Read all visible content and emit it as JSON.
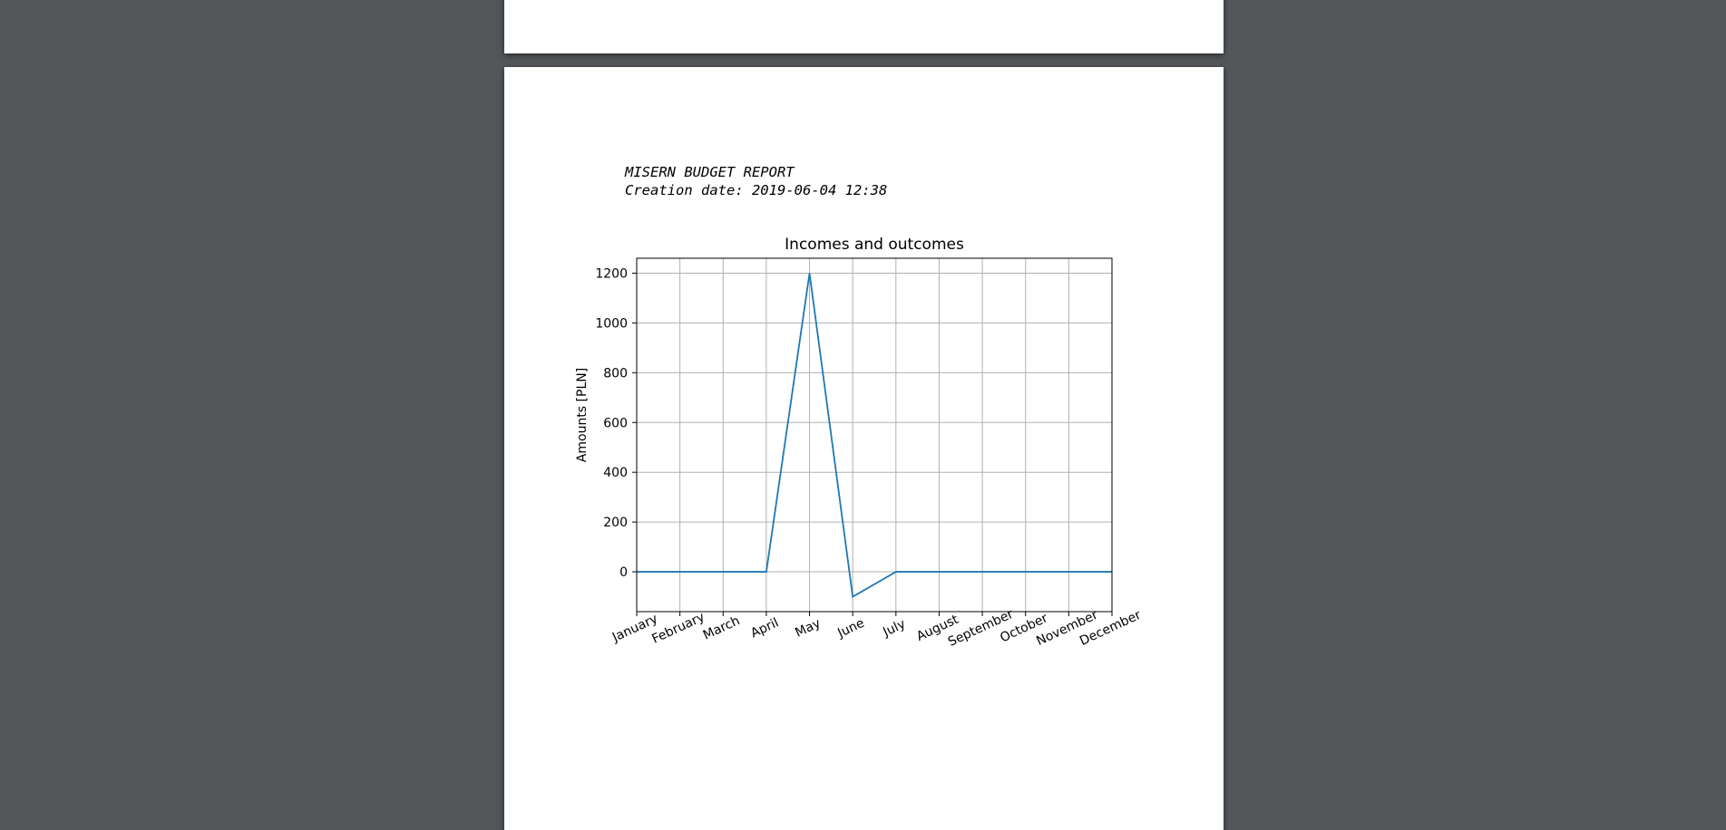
{
  "report": {
    "title_line": "MISERN BUDGET REPORT",
    "date_line": "Creation date: 2019-06-04 12:38"
  },
  "chart_data": {
    "type": "line",
    "title": "Incomes and outcomes",
    "xlabel": "",
    "ylabel": "Amounts [PLN]",
    "categories": [
      "January",
      "February",
      "March",
      "April",
      "May",
      "June",
      "July",
      "August",
      "September",
      "October",
      "November",
      "December"
    ],
    "series": [
      {
        "values": [
          0,
          0,
          0,
          0,
          1200,
          -100,
          0,
          0,
          0,
          0,
          0,
          0
        ],
        "color": "#1f77b4"
      }
    ],
    "ylim": [
      -160,
      1260
    ],
    "yticks": [
      0,
      200,
      400,
      600,
      800,
      1000,
      1200
    ],
    "grid": true
  }
}
